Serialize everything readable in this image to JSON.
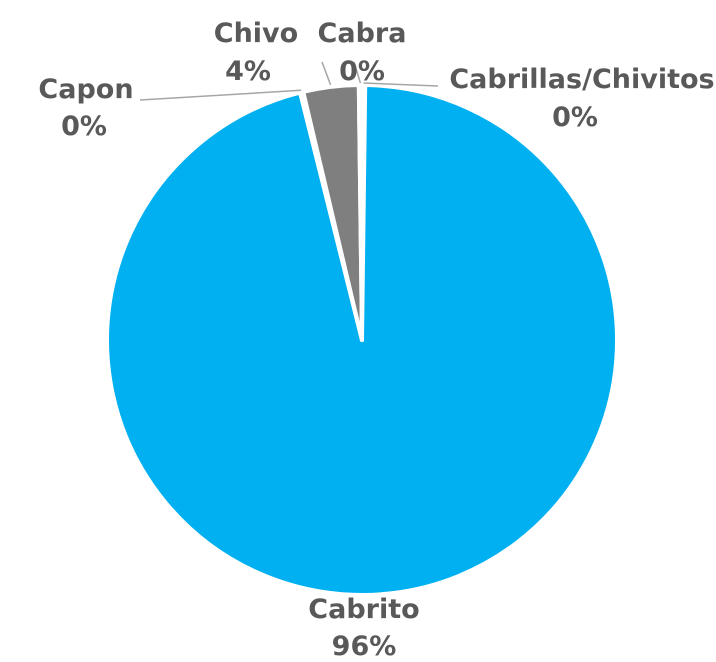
{
  "chart_data": {
    "type": "pie",
    "title": "",
    "slices": [
      {
        "label": "Cabrillas/Chivitos",
        "value": 0.2,
        "percent_label": "0%",
        "color": "#A5A5A5"
      },
      {
        "label": "Cabrito",
        "value": 95.9,
        "percent_label": "96%",
        "color": "#00B0F0"
      },
      {
        "label": "Capon",
        "value": 0.2,
        "percent_label": "0%",
        "color": "#A5A5A5"
      },
      {
        "label": "Chivo",
        "value": 3.5,
        "percent_label": "4%",
        "color": "#7F7F7F"
      },
      {
        "label": "Cabra",
        "value": 0.2,
        "percent_label": "0%",
        "color": "#A5A5A5"
      }
    ],
    "legend": "none",
    "label_color": "#595959"
  }
}
